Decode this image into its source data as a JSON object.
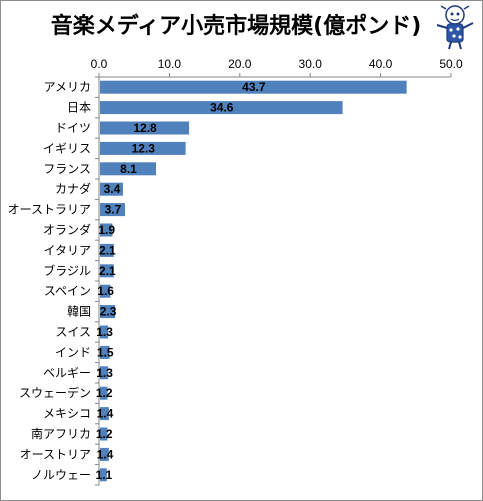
{
  "chart_data": {
    "type": "bar",
    "orientation": "horizontal",
    "title": "音楽メディア小売市場規模(億ポンド)",
    "categories": [
      "アメリカ",
      "日本",
      "ドイツ",
      "イギリス",
      "フランス",
      "カナダ",
      "オーストラリア",
      "オランダ",
      "イタリア",
      "ブラジル",
      "スペイン",
      "韓国",
      "スイス",
      "インド",
      "ベルギー",
      "スウェーデン",
      "メキシコ",
      "南アフリカ",
      "オーストリア",
      "ノルウェー"
    ],
    "values": [
      43.7,
      34.6,
      12.8,
      12.3,
      8.1,
      3.4,
      3.7,
      1.9,
      2.1,
      2.1,
      1.6,
      2.3,
      1.3,
      1.5,
      1.3,
      1.2,
      1.4,
      1.2,
      1.4,
      1.1
    ],
    "value_labels": [
      "43.7",
      "34.6",
      "12.8",
      "12.3",
      "8.1",
      "3.4",
      "3.7",
      "1.9",
      "2.1",
      "2.1",
      "1.6",
      "2.3",
      "1.3",
      "1.5",
      "1.3",
      "1.2",
      "1.4",
      "1.2",
      "1.4",
      "1.1"
    ],
    "xlim": [
      0,
      50
    ],
    "ticks": [
      "0.0",
      "10.0",
      "20.0",
      "30.0",
      "40.0",
      "50.0"
    ],
    "tick_values": [
      0,
      10,
      20,
      30,
      40,
      50
    ],
    "axis_position": "top",
    "grid": false,
    "bar_color": "#4f81bd",
    "mascot_icon": "mascot-illustration-icon"
  }
}
